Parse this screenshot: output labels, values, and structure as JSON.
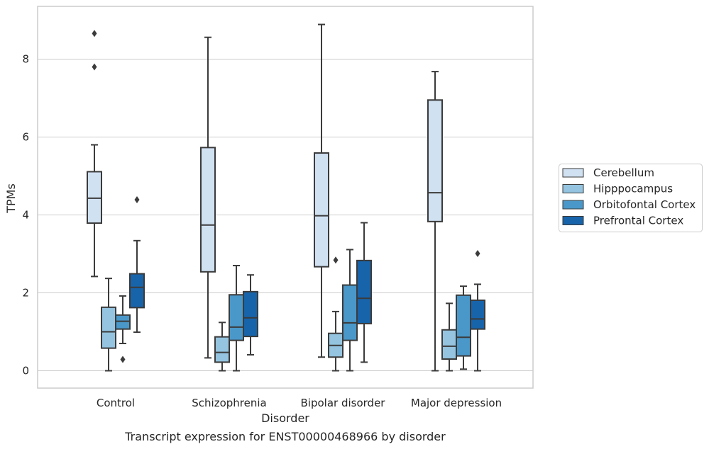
{
  "caption": "Transcript expression for ENST00000468966 by disorder",
  "chart_data": {
    "type": "box",
    "xlabel": "Disorder",
    "ylabel": "TPMs",
    "ylim": [
      -0.42,
      9.3
    ],
    "yticks": [
      0,
      2,
      4,
      6,
      8
    ],
    "grid": true,
    "legend_position": "right",
    "categories": [
      "Control",
      "Schizophrenia",
      "Bipolar disorder",
      "Major depression"
    ],
    "series": [
      {
        "name": "Cerebellum",
        "color": "#d0e1f2",
        "boxes": [
          {
            "whisker_low": 2.42,
            "q1": 3.79,
            "median": 4.43,
            "q3": 5.11,
            "whisker_high": 5.8,
            "outliers": [
              7.8,
              8.66
            ]
          },
          {
            "whisker_low": 0.33,
            "q1": 2.54,
            "median": 3.74,
            "q3": 5.73,
            "whisker_high": 8.56,
            "outliers": []
          },
          {
            "whisker_low": 0.35,
            "q1": 2.67,
            "median": 3.98,
            "q3": 5.59,
            "whisker_high": 8.89,
            "outliers": []
          },
          {
            "whisker_low": 0.0,
            "q1": 3.83,
            "median": 4.57,
            "q3": 6.95,
            "whisker_high": 7.68,
            "outliers": []
          }
        ]
      },
      {
        "name": "Hipppocampus",
        "color": "#94c4df",
        "boxes": [
          {
            "whisker_low": 0.0,
            "q1": 0.58,
            "median": 1.0,
            "q3": 1.63,
            "whisker_high": 2.37,
            "outliers": []
          },
          {
            "whisker_low": 0.0,
            "q1": 0.22,
            "median": 0.47,
            "q3": 0.87,
            "whisker_high": 1.24,
            "outliers": []
          },
          {
            "whisker_low": 0.0,
            "q1": 0.35,
            "median": 0.65,
            "q3": 0.96,
            "whisker_high": 1.52,
            "outliers": [
              2.84
            ]
          },
          {
            "whisker_low": 0.0,
            "q1": 0.3,
            "median": 0.63,
            "q3": 1.05,
            "whisker_high": 1.73,
            "outliers": []
          }
        ]
      },
      {
        "name": "Orbitofontal Cortex",
        "color": "#4a98c9",
        "boxes": [
          {
            "whisker_low": 0.7,
            "q1": 1.07,
            "median": 1.27,
            "q3": 1.43,
            "whisker_high": 1.92,
            "outliers": [
              0.29
            ]
          },
          {
            "whisker_low": 0.0,
            "q1": 0.78,
            "median": 1.12,
            "q3": 1.95,
            "whisker_high": 2.7,
            "outliers": []
          },
          {
            "whisker_low": 0.0,
            "q1": 0.78,
            "median": 1.23,
            "q3": 2.2,
            "whisker_high": 3.11,
            "outliers": []
          },
          {
            "whisker_low": 0.04,
            "q1": 0.38,
            "median": 0.86,
            "q3": 1.94,
            "whisker_high": 2.17,
            "outliers": []
          }
        ]
      },
      {
        "name": "Prefrontal Cortex",
        "color": "#1764ab",
        "boxes": [
          {
            "whisker_low": 0.99,
            "q1": 1.62,
            "median": 2.14,
            "q3": 2.49,
            "whisker_high": 3.34,
            "outliers": [
              4.39
            ]
          },
          {
            "whisker_low": 0.41,
            "q1": 0.88,
            "median": 1.36,
            "q3": 2.03,
            "whisker_high": 2.46,
            "outliers": []
          },
          {
            "whisker_low": 0.22,
            "q1": 1.21,
            "median": 1.86,
            "q3": 2.83,
            "whisker_high": 3.8,
            "outliers": []
          },
          {
            "whisker_low": 0.0,
            "q1": 1.07,
            "median": 1.33,
            "q3": 1.81,
            "whisker_high": 2.22,
            "outliers": [
              3.01
            ]
          }
        ]
      }
    ]
  }
}
